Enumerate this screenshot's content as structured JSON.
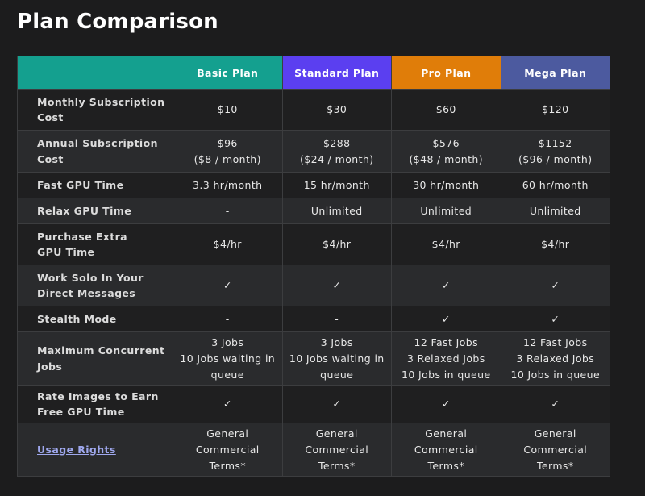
{
  "title": "Plan Comparison",
  "plans": [
    "Basic Plan",
    "Standard Plan",
    "Pro Plan",
    "Mega Plan"
  ],
  "colors": {
    "corner": "#14a08f",
    "basic": "#14a08f",
    "standard": "#5b3ff0",
    "pro": "#e07d09",
    "mega": "#4c5a9f",
    "link": "#9fa8ee"
  },
  "rows": [
    {
      "key": "cost",
      "label": [
        "Monthly Subscription",
        "Cost"
      ],
      "values": [
        [
          "$10"
        ],
        [
          "$30"
        ],
        [
          "$60"
        ],
        [
          "$120"
        ]
      ]
    },
    {
      "key": "annual",
      "label": [
        "Annual Subscription",
        "Cost"
      ],
      "values": [
        [
          "$96",
          "($8 / month)"
        ],
        [
          "$288",
          "($24 / month)"
        ],
        [
          "$576",
          "($48 / month)"
        ],
        [
          "$1152",
          "($96 / month)"
        ]
      ]
    },
    {
      "key": "fast",
      "label": [
        "Fast GPU Time"
      ],
      "values": [
        [
          "3.3 hr/month"
        ],
        [
          "15 hr/month"
        ],
        [
          "30 hr/month"
        ],
        [
          "60 hr/month"
        ]
      ]
    },
    {
      "key": "relax",
      "label": [
        "Relax GPU Time"
      ],
      "values": [
        [
          "-"
        ],
        [
          "Unlimited"
        ],
        [
          "Unlimited"
        ],
        [
          "Unlimited"
        ]
      ]
    },
    {
      "key": "extra",
      "label": [
        "Purchase Extra",
        "GPU Time"
      ],
      "values": [
        [
          "$4/hr"
        ],
        [
          "$4/hr"
        ],
        [
          "$4/hr"
        ],
        [
          "$4/hr"
        ]
      ]
    },
    {
      "key": "solo",
      "label": [
        "Work Solo In Your",
        "Direct Messages"
      ],
      "values": [
        [
          "✓"
        ],
        [
          "✓"
        ],
        [
          "✓"
        ],
        [
          "✓"
        ]
      ]
    },
    {
      "key": "stealth",
      "label": [
        "Stealth Mode"
      ],
      "values": [
        [
          "-"
        ],
        [
          "-"
        ],
        [
          "✓"
        ],
        [
          "✓"
        ]
      ]
    },
    {
      "key": "concurrent",
      "label": [
        "Maximum Concurrent",
        "Jobs"
      ],
      "values": [
        [
          "3 Jobs",
          "10 Jobs waiting in",
          "queue"
        ],
        [
          "3 Jobs",
          "10 Jobs waiting in",
          "queue"
        ],
        [
          "12 Fast Jobs",
          "3 Relaxed Jobs",
          "10 Jobs in queue"
        ],
        [
          "12 Fast Jobs",
          "3 Relaxed Jobs",
          "10 Jobs in queue"
        ]
      ]
    },
    {
      "key": "rate",
      "label": [
        "Rate Images to Earn",
        "Free GPU Time"
      ],
      "values": [
        [
          "✓"
        ],
        [
          "✓"
        ],
        [
          "✓"
        ],
        [
          "✓"
        ]
      ]
    },
    {
      "key": "rights",
      "label": [
        "Usage Rights"
      ],
      "link": true,
      "values": [
        [
          "General",
          "Commercial",
          "Terms*"
        ],
        [
          "General",
          "Commercial",
          "Terms*"
        ],
        [
          "General",
          "Commercial",
          "Terms*"
        ],
        [
          "General",
          "Commercial",
          "Terms*"
        ]
      ]
    }
  ]
}
